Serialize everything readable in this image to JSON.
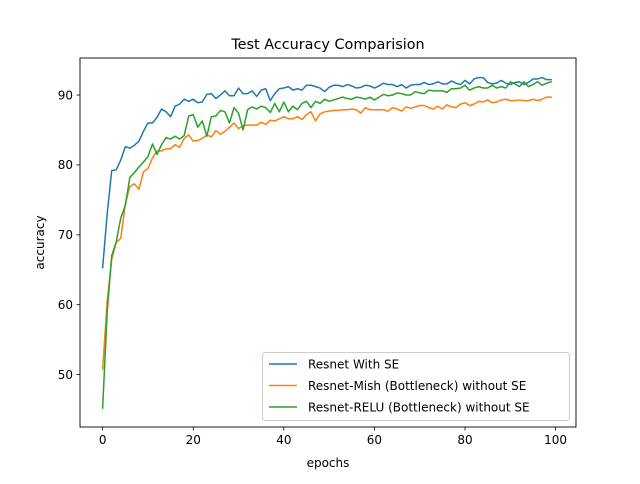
{
  "chart_data": {
    "type": "line",
    "title": "Test Accuracy Comparision",
    "xlabel": "epochs",
    "ylabel": "accuracy",
    "xlim": [
      -5,
      104.5
    ],
    "ylim": [
      42.5,
      95.3
    ],
    "xticks": [
      0,
      20,
      40,
      60,
      80,
      100
    ],
    "yticks": [
      50,
      60,
      70,
      80,
      90
    ],
    "grid": false,
    "legend_position": "lower-right",
    "x": [
      0,
      1,
      2,
      3,
      4,
      5,
      6,
      7,
      8,
      9,
      10,
      11,
      12,
      13,
      14,
      15,
      16,
      17,
      18,
      19,
      20,
      21,
      22,
      23,
      24,
      25,
      26,
      27,
      28,
      29,
      30,
      31,
      32,
      33,
      34,
      35,
      36,
      37,
      38,
      39,
      40,
      41,
      42,
      43,
      44,
      45,
      46,
      47,
      48,
      49,
      50,
      51,
      52,
      53,
      54,
      55,
      56,
      57,
      58,
      59,
      60,
      61,
      62,
      63,
      64,
      65,
      66,
      67,
      68,
      69,
      70,
      71,
      72,
      73,
      74,
      75,
      76,
      77,
      78,
      79,
      80,
      81,
      82,
      83,
      84,
      85,
      86,
      87,
      88,
      89,
      90,
      91,
      92,
      93,
      94,
      95,
      96,
      97,
      98,
      99
    ],
    "series": [
      {
        "name": "Resnet With SE",
        "color": "#1f77b4",
        "values": [
          65.3,
          73.0,
          79.2,
          79.3,
          80.7,
          82.6,
          82.4,
          82.8,
          83.4,
          84.8,
          86.0,
          86.0,
          86.8,
          88.0,
          87.6,
          86.9,
          88.4,
          88.7,
          89.4,
          89.1,
          89.4,
          88.9,
          89.0,
          90.1,
          90.2,
          89.5,
          90.0,
          90.6,
          89.9,
          89.9,
          91.0,
          90.2,
          90.2,
          90.6,
          89.8,
          90.7,
          90.9,
          89.2,
          90.2,
          90.9,
          91.0,
          91.2,
          90.7,
          90.9,
          90.7,
          91.4,
          91.4,
          91.2,
          91.0,
          90.5,
          91.1,
          91.4,
          91.4,
          91.2,
          91.5,
          91.3,
          91.0,
          91.1,
          91.4,
          91.3,
          91.0,
          91.3,
          91.7,
          91.5,
          91.5,
          91.2,
          91.5,
          91.0,
          91.4,
          91.5,
          91.5,
          91.8,
          91.5,
          91.6,
          91.9,
          91.6,
          91.6,
          92.0,
          91.7,
          91.5,
          92.1,
          91.6,
          92.3,
          92.5,
          92.5,
          91.8,
          91.6,
          91.7,
          92.1,
          91.7,
          91.5,
          91.8,
          91.9,
          91.5,
          91.8,
          92.3,
          92.3,
          92.5,
          92.2,
          92.2
        ]
      },
      {
        "name": "Resnet-Mish (Bottleneck) without SE",
        "color": "#ff7f0e",
        "values": [
          50.8,
          60.5,
          66.5,
          68.9,
          69.5,
          74.4,
          76.9,
          77.3,
          76.5,
          79.0,
          79.5,
          81.0,
          82.0,
          82.0,
          82.3,
          82.3,
          82.9,
          82.5,
          83.8,
          84.3,
          83.4,
          83.5,
          83.8,
          84.3,
          84.0,
          84.9,
          84.4,
          84.8,
          85.4,
          86.0,
          85.2,
          85.6,
          85.7,
          85.7,
          85.7,
          86.1,
          85.8,
          86.4,
          86.3,
          86.6,
          86.9,
          86.6,
          86.6,
          86.9,
          86.5,
          87.2,
          87.6,
          86.3,
          87.3,
          87.6,
          87.7,
          87.8,
          87.8,
          87.9,
          87.9,
          88.0,
          87.9,
          87.4,
          88.2,
          87.9,
          87.9,
          87.9,
          87.9,
          87.7,
          88.2,
          88.0,
          87.7,
          88.3,
          88.1,
          88.3,
          88.5,
          88.5,
          88.2,
          88.0,
          88.4,
          88.0,
          88.6,
          88.3,
          88.2,
          88.7,
          88.9,
          88.5,
          88.7,
          89.1,
          89.0,
          89.3,
          88.9,
          89.0,
          89.3,
          89.4,
          89.2,
          89.2,
          89.3,
          89.2,
          89.2,
          89.4,
          89.2,
          89.4,
          89.7,
          89.7
        ]
      },
      {
        "name": "Resnet-RELU (Bottleneck) without SE",
        "color": "#2ca02c",
        "values": [
          45.2,
          59.0,
          67.0,
          69.0,
          72.4,
          74.2,
          78.2,
          78.9,
          79.7,
          80.4,
          81.2,
          83.0,
          81.5,
          82.9,
          83.9,
          83.7,
          84.1,
          83.7,
          84.2,
          87.0,
          87.2,
          85.4,
          86.3,
          84.1,
          86.9,
          87.0,
          87.8,
          87.6,
          86.0,
          88.2,
          87.4,
          85.0,
          87.9,
          88.3,
          88.0,
          88.4,
          88.2,
          87.5,
          88.8,
          87.6,
          89.0,
          87.6,
          88.4,
          87.9,
          88.8,
          89.1,
          88.2,
          89.1,
          88.8,
          89.4,
          89.1,
          89.3,
          89.5,
          89.7,
          89.5,
          89.4,
          89.7,
          89.6,
          89.4,
          89.7,
          89.3,
          89.7,
          90.1,
          89.9,
          90.0,
          90.3,
          90.2,
          90.0,
          90.0,
          90.5,
          90.3,
          90.2,
          90.7,
          90.6,
          90.6,
          90.6,
          90.4,
          90.9,
          90.9,
          91.0,
          91.4,
          90.7,
          91.0,
          91.2,
          91.0,
          91.0,
          91.4,
          91.0,
          91.2,
          91.0,
          91.9,
          91.6,
          91.2,
          91.9,
          91.2,
          91.5,
          91.9,
          91.4,
          91.7,
          91.9
        ]
      }
    ]
  }
}
